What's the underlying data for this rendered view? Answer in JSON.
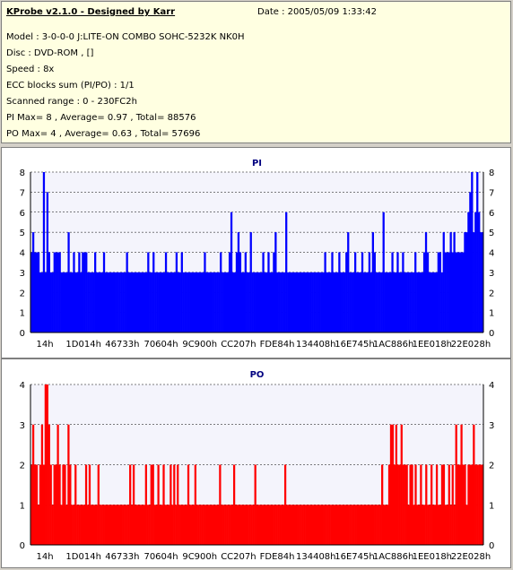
{
  "info": {
    "title": "KProbe v2.1.0 - Designed by Karr",
    "date": "Date : 2005/05/09 1:33:42",
    "lines": [
      "Model : 3-0-0-0 J:LITE-ON COMBO SOHC-5232K NK0H",
      "Disc : DVD-ROM ,  []",
      "Speed : 8x",
      "ECC blocks sum (PI/PO) : 1/1",
      "Scanned range : 0 - 230FC2h",
      "PI Max= 8 , Average= 0.97 , Total= 88576",
      "PO Max= 4 , Average= 0.63 , Total= 57696"
    ]
  },
  "colors": {
    "pi": "#0000ff",
    "po": "#ff0000",
    "plot_bg": "#f4f4fc"
  },
  "chart_data": [
    {
      "type": "bar",
      "title": "PI",
      "ylim": [
        0,
        8
      ],
      "yticks": [
        "0",
        "1",
        "2",
        "3",
        "4",
        "5",
        "6",
        "7",
        "8"
      ],
      "xticks": [
        "14h",
        "1D014h",
        "46733h",
        "70604h",
        "9C900h",
        "CC207h",
        "FDE84h",
        "134408h",
        "16E745h",
        "1AC886h",
        "1EE018h",
        "22E028h"
      ],
      "x_range": [
        "0",
        "230FC2h"
      ],
      "series": [
        {
          "values": [
            4,
            5,
            4,
            4,
            4,
            3,
            3,
            8,
            3,
            7,
            4,
            3,
            3,
            4,
            4,
            4,
            4,
            3,
            3,
            3,
            3,
            5,
            3,
            3,
            4,
            3,
            3,
            4,
            3,
            4,
            4,
            4,
            3,
            3,
            3,
            3,
            4,
            3,
            3,
            3,
            3,
            4,
            3,
            3,
            3,
            3,
            3,
            3,
            3,
            3,
            3,
            3,
            3,
            3,
            4,
            3,
            3,
            3,
            3,
            3,
            3,
            3,
            3,
            3,
            3,
            3,
            4,
            3,
            3,
            4,
            3,
            3,
            3,
            3,
            3,
            3,
            4,
            3,
            3,
            3,
            3,
            3,
            4,
            3,
            3,
            4,
            3,
            3,
            3,
            3,
            3,
            3,
            3,
            3,
            3,
            3,
            3,
            3,
            4,
            3,
            3,
            3,
            3,
            3,
            3,
            3,
            3,
            4,
            3,
            3,
            3,
            3,
            4,
            6,
            3,
            3,
            4,
            5,
            4,
            3,
            3,
            4,
            3,
            3,
            5,
            3,
            3,
            3,
            3,
            3,
            3,
            4,
            3,
            3,
            4,
            3,
            3,
            4,
            5,
            3,
            3,
            3,
            3,
            3,
            6,
            3,
            3,
            3,
            3,
            3,
            3,
            3,
            3,
            3,
            3,
            3,
            3,
            3,
            3,
            3,
            3,
            3,
            3,
            3,
            3,
            3,
            4,
            3,
            3,
            3,
            4,
            3,
            3,
            3,
            4,
            3,
            3,
            3,
            4,
            5,
            3,
            3,
            3,
            4,
            3,
            3,
            3,
            4,
            3,
            3,
            3,
            4,
            3,
            5,
            4,
            3,
            3,
            3,
            3,
            6,
            3,
            3,
            3,
            3,
            4,
            3,
            3,
            4,
            3,
            3,
            4,
            3,
            3,
            3,
            3,
            3,
            3,
            4,
            3,
            3,
            3,
            3,
            4,
            5,
            4,
            3,
            3,
            3,
            3,
            3,
            4,
            4,
            3,
            5,
            4,
            4,
            4,
            5,
            4,
            5,
            4,
            4,
            4,
            4,
            4,
            5,
            5,
            6,
            7,
            8,
            5,
            6,
            8,
            6,
            5,
            5
          ]
        }
      ]
    },
    {
      "type": "bar",
      "title": "PO",
      "ylim": [
        0,
        4
      ],
      "yticks": [
        "0",
        "1",
        "2",
        "3",
        "4"
      ],
      "xticks": [
        "14h",
        "1D014h",
        "46733h",
        "70604h",
        "9C900h",
        "CC207h",
        "FDE84h",
        "134408h",
        "16E745h",
        "1AC886h",
        "1EE018h",
        "22E028h"
      ],
      "x_range": [
        "0",
        "230FC2h"
      ],
      "series": [
        {
          "values": [
            2,
            3,
            2,
            2,
            1,
            2,
            3,
            2,
            4,
            4,
            3,
            2,
            1,
            2,
            2,
            3,
            2,
            1,
            2,
            2,
            1,
            3,
            2,
            1,
            1,
            2,
            1,
            1,
            1,
            1,
            1,
            2,
            1,
            2,
            1,
            1,
            1,
            1,
            2,
            1,
            1,
            1,
            1,
            1,
            1,
            1,
            1,
            1,
            1,
            1,
            1,
            1,
            1,
            1,
            1,
            1,
            2,
            1,
            2,
            1,
            1,
            1,
            1,
            1,
            1,
            2,
            1,
            1,
            2,
            2,
            1,
            1,
            2,
            1,
            1,
            2,
            1,
            1,
            1,
            2,
            1,
            2,
            1,
            2,
            1,
            1,
            1,
            1,
            1,
            2,
            1,
            1,
            1,
            2,
            1,
            1,
            1,
            1,
            1,
            1,
            1,
            1,
            1,
            1,
            1,
            1,
            1,
            2,
            1,
            1,
            1,
            1,
            1,
            1,
            1,
            2,
            1,
            1,
            1,
            1,
            1,
            1,
            1,
            1,
            1,
            1,
            1,
            2,
            1,
            1,
            1,
            1,
            1,
            1,
            1,
            1,
            1,
            1,
            1,
            1,
            1,
            1,
            1,
            1,
            2,
            1,
            1,
            1,
            1,
            1,
            1,
            1,
            1,
            1,
            1,
            1,
            1,
            1,
            1,
            1,
            1,
            1,
            1,
            1,
            1,
            1,
            1,
            1,
            1,
            1,
            1,
            1,
            1,
            1,
            1,
            1,
            1,
            1,
            1,
            1,
            1,
            1,
            1,
            1,
            1,
            1,
            1,
            1,
            1,
            1,
            1,
            1,
            1,
            1,
            1,
            1,
            1,
            1,
            1,
            2,
            1,
            1,
            1,
            2,
            3,
            3,
            2,
            3,
            2,
            2,
            3,
            2,
            2,
            2,
            1,
            2,
            2,
            1,
            2,
            1,
            1,
            2,
            1,
            1,
            2,
            1,
            1,
            2,
            1,
            1,
            2,
            1,
            1,
            2,
            2,
            1,
            1,
            2,
            1,
            2,
            1,
            3,
            2,
            2,
            3,
            2,
            2,
            1,
            2,
            2,
            2,
            3,
            2,
            2,
            2,
            2,
            2
          ]
        }
      ]
    }
  ]
}
